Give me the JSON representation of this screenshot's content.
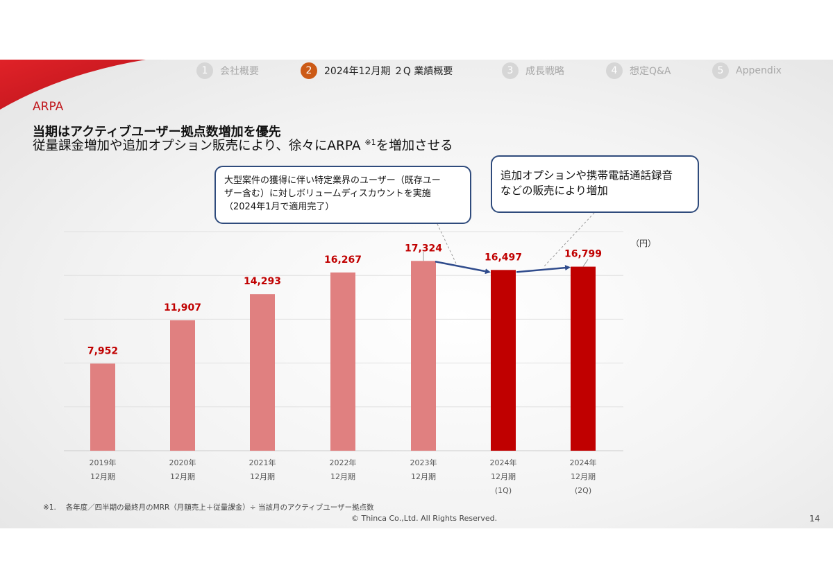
{
  "nav": [
    {
      "num": "1",
      "label": "会社概要"
    },
    {
      "num": "2",
      "label": "2024年12月期 ２Q 業績概要"
    },
    {
      "num": "3",
      "label": "成長戦略"
    },
    {
      "num": "4",
      "label": "想定Q&A"
    },
    {
      "num": "5",
      "label": "Appendix"
    }
  ],
  "section_title": "ARPA",
  "headline": "当期はアクティブユーザー拠点数増加を優先",
  "subline": {
    "pre": "従量課金増加や追加オプション販売により、徐々にARPA ",
    "note": "※1",
    "post": "を増加させる"
  },
  "callouts": {
    "discount": {
      "line1": "大型案件の獲得に伴い特定業界のユーザー（既存ユー",
      "line2": "ザー含む）に対しボリュームディスカウントを実施",
      "line3": "（2024年1月で適用完了）"
    },
    "options": {
      "line1": "追加オプションや携帯電話通話録音",
      "line2": "などの販売により増加"
    }
  },
  "unit": "（円）",
  "chart_data": {
    "type": "bar",
    "ylim": [
      0,
      20000
    ],
    "grid": true,
    "categories": [
      {
        "line1": "2019年",
        "line2": "12月期",
        "line3": ""
      },
      {
        "line1": "2020年",
        "line2": "12月期",
        "line3": ""
      },
      {
        "line1": "2021年",
        "line2": "12月期",
        "line3": ""
      },
      {
        "line1": "2022年",
        "line2": "12月期",
        "line3": ""
      },
      {
        "line1": "2023年",
        "line2": "12月期",
        "line3": ""
      },
      {
        "line1": "2024年",
        "line2": "12月期",
        "line3": "(1Q)"
      },
      {
        "line1": "2024年",
        "line2": "12月期",
        "line3": "(2Q)"
      }
    ],
    "values": [
      7952,
      11907,
      14293,
      16267,
      17324,
      16497,
      16799
    ],
    "value_labels": [
      "7,952",
      "11,907",
      "14,293",
      "16,267",
      "17,324",
      "16,497",
      "16,799"
    ],
    "highlight": [
      false,
      false,
      false,
      false,
      false,
      true,
      true
    ]
  },
  "colors": {
    "bar": "#e08080",
    "bar_highlight": "#c00000",
    "label": "#c00000",
    "arrow": "#2f4b8c",
    "accent": "#c0161b"
  },
  "footnote": "※1.　 各年度／四半期の最終月のMRR（月額売上＋従量課金）÷ 当該月のアクティブユーザー拠点数",
  "copyright": "© Thinca Co.,Ltd. All Rights Reserved.",
  "page_number": "14"
}
